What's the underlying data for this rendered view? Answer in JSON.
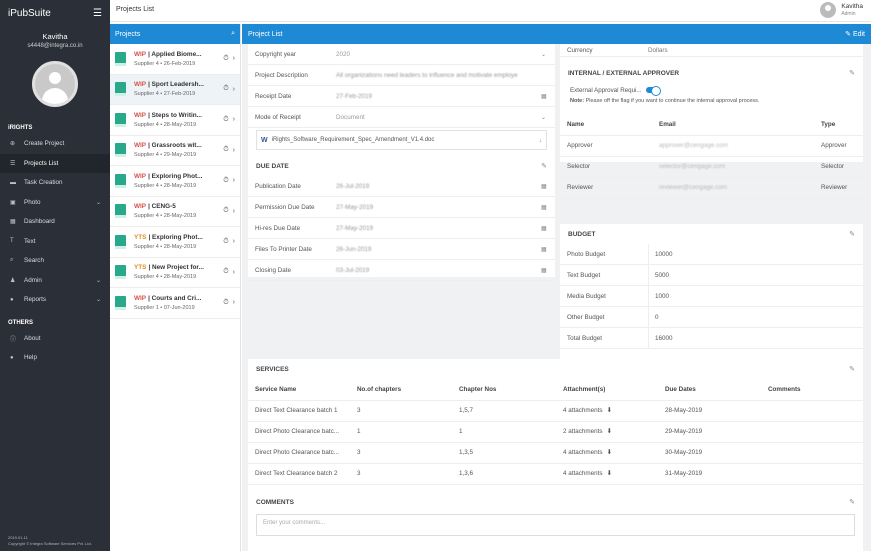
{
  "app": {
    "brand": "iPubSuite",
    "page_title": "Projects List"
  },
  "user": {
    "name": "Kavitha",
    "email": "s4448@integra.co.in",
    "top_name": "Kavitha",
    "top_role": "Admin"
  },
  "sidebar": {
    "section1": "iRIGHTS",
    "items": [
      {
        "label": "Create Project",
        "icon": "plus-circle-icon",
        "glyph": "⊕"
      },
      {
        "label": "Projects List",
        "icon": "list-icon",
        "glyph": "☰"
      },
      {
        "label": "Task Creation",
        "icon": "task-icon",
        "glyph": "▬"
      },
      {
        "label": "Photo",
        "icon": "photo-icon",
        "glyph": "▣",
        "chev": "⌄"
      },
      {
        "label": "Dashboard",
        "icon": "dashboard-icon",
        "glyph": "▦"
      },
      {
        "label": "Text",
        "icon": "text-icon",
        "glyph": "T"
      },
      {
        "label": "Search",
        "icon": "search-icon",
        "glyph": "⌕"
      },
      {
        "label": "Admin",
        "icon": "admin-icon",
        "glyph": "♟",
        "chev": "⌄"
      },
      {
        "label": "Reports",
        "icon": "reports-icon",
        "glyph": "●",
        "chev": "⌄"
      }
    ],
    "section2": "OTHERS",
    "others": [
      {
        "label": "About",
        "icon": "info-icon",
        "glyph": "ⓘ"
      },
      {
        "label": "Help",
        "icon": "help-icon",
        "glyph": "●"
      }
    ],
    "version": "2019.01.11",
    "copyright": "Copyright © Integra Software Services Pvt. Ltd."
  },
  "projects": {
    "header": "Projects",
    "items": [
      {
        "status": "WIP",
        "title": "Applied Biome...",
        "sub": "Supplier 4 • 26-Feb-2019"
      },
      {
        "status": "WIP",
        "title": "Sport Leadersh...",
        "sub": "Supplier 4 • 27-Feb-2019"
      },
      {
        "status": "WIP",
        "title": "Steps to Writin...",
        "sub": "Supplier 4 • 28-May-2019"
      },
      {
        "status": "WIP",
        "title": "Grassroots wit...",
        "sub": "Supplier 4 • 29-May-2019"
      },
      {
        "status": "WIP",
        "title": "Exploring Phot...",
        "sub": "Supplier 4 • 28-May-2019"
      },
      {
        "status": "WIP",
        "title": "CENG-5",
        "sub": "Supplier 4 • 28-May-2019"
      },
      {
        "status": "YTS",
        "title": "Exploring Phot...",
        "sub": "Supplier 4 • 28-May-2019"
      },
      {
        "status": "YTS",
        "title": "New Project for...",
        "sub": "Supplier 4 • 28-May-2019"
      },
      {
        "status": "WIP",
        "title": "Courts and Cri...",
        "sub": "Supplier 1 • 07-Jun-2019"
      }
    ]
  },
  "main": {
    "header": "Project List",
    "edit": "Edit",
    "details": [
      {
        "label": "Copyright year",
        "value": "2020",
        "cal": "⌄"
      },
      {
        "label": "Project Description",
        "value": "All organizations need leaders to influence and motivate employe",
        "cal": ""
      },
      {
        "label": "Receipt Date",
        "value": "27-Feb-2019",
        "cal": "▦"
      },
      {
        "label": "Mode of Receipt",
        "value": "Document",
        "cal": "⌄"
      }
    ],
    "attachment": "iRights_Software_Requirement_Spec_Amendment_V1.4.doc",
    "due_title": "DUE DATE",
    "due": [
      {
        "label": "Publication Date",
        "value": "26-Jul-2019"
      },
      {
        "label": "Permission Due Date",
        "value": "27-May-2019"
      },
      {
        "label": "Hi-res Due Date",
        "value": "27-May-2019"
      },
      {
        "label": "Files To Printer Date",
        "value": "26-Jun-2019"
      },
      {
        "label": "Closing Date",
        "value": "03-Jul-2019"
      }
    ],
    "currency": {
      "label": "Currency",
      "value": "Dollars"
    },
    "approver_title": "INTERNAL / EXTERNAL APPROVER",
    "approval_flag": "External Approval Requi...",
    "note_label": "Note:",
    "note": "Please off the flag if you want to continue the internal approval process.",
    "approver_cols": [
      "Name",
      "Email",
      "Type"
    ],
    "approvers": [
      {
        "name": "Approver",
        "email": "approver@cengage.com",
        "type": "Approver"
      },
      {
        "name": "Selector",
        "email": "selector@cengage.com",
        "type": "Selector"
      },
      {
        "name": "Reviewer",
        "email": "reviewer@cengage.com",
        "type": "Reviewer"
      }
    ],
    "budget_title": "BUDGET",
    "budget": [
      {
        "label": "Photo Budget",
        "value": "10000"
      },
      {
        "label": "Text Budget",
        "value": "5000"
      },
      {
        "label": "Media Budget",
        "value": "1000"
      },
      {
        "label": "Other Budget",
        "value": "0"
      },
      {
        "label": "Total Budget",
        "value": "16000"
      }
    ],
    "services_title": "SERVICES",
    "services_cols": [
      "Service Name",
      "No.of chapters",
      "Chapter Nos",
      "Attachment(s)",
      "Due Dates",
      "Comments"
    ],
    "services": [
      {
        "name": "Direct Text Clearance batch 1",
        "chapters": "3",
        "nos": "1,5,7",
        "att": "4 attachments",
        "due": "28-May-2019",
        "comments": ""
      },
      {
        "name": "Direct Photo Clearance batc...",
        "chapters": "1",
        "nos": "1",
        "att": "2 attachments",
        "due": "29-May-2019",
        "comments": ""
      },
      {
        "name": "Direct Photo Clearance batc...",
        "chapters": "3",
        "nos": "1,3,5",
        "att": "4 attachments",
        "due": "30-May-2019",
        "comments": ""
      },
      {
        "name": "Direct Text Clearance batch 2",
        "chapters": "3",
        "nos": "1,3,6",
        "att": "4 attachments",
        "due": "31-May-2019",
        "comments": ""
      }
    ],
    "comments_title": "COMMENTS",
    "comments_placeholder": "Enter your comments..."
  }
}
